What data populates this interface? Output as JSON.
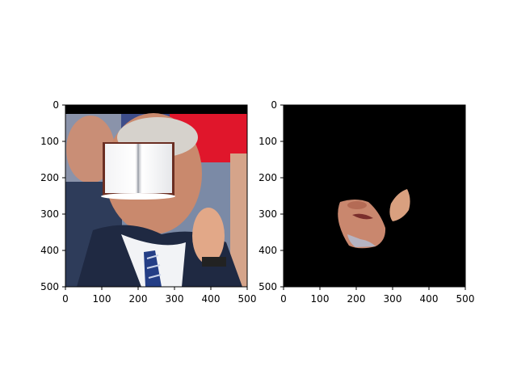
{
  "figure": {
    "background": "#ffffff"
  },
  "left_panel": {
    "x_ticks": [
      "0",
      "100",
      "200",
      "300",
      "400",
      "500"
    ],
    "y_ticks": [
      "0",
      "100",
      "200",
      "300",
      "400",
      "500"
    ],
    "content": "photo of man in suit with tie, face region covered by an open-book icon"
  },
  "right_panel": {
    "x_ticks": [
      "0",
      "100",
      "200",
      "300",
      "400",
      "500"
    ],
    "y_ticks": [
      "0",
      "100",
      "200",
      "300",
      "400",
      "500"
    ],
    "background": "#000000",
    "content": "segmented skin regions (lower face and hand) on black background"
  }
}
